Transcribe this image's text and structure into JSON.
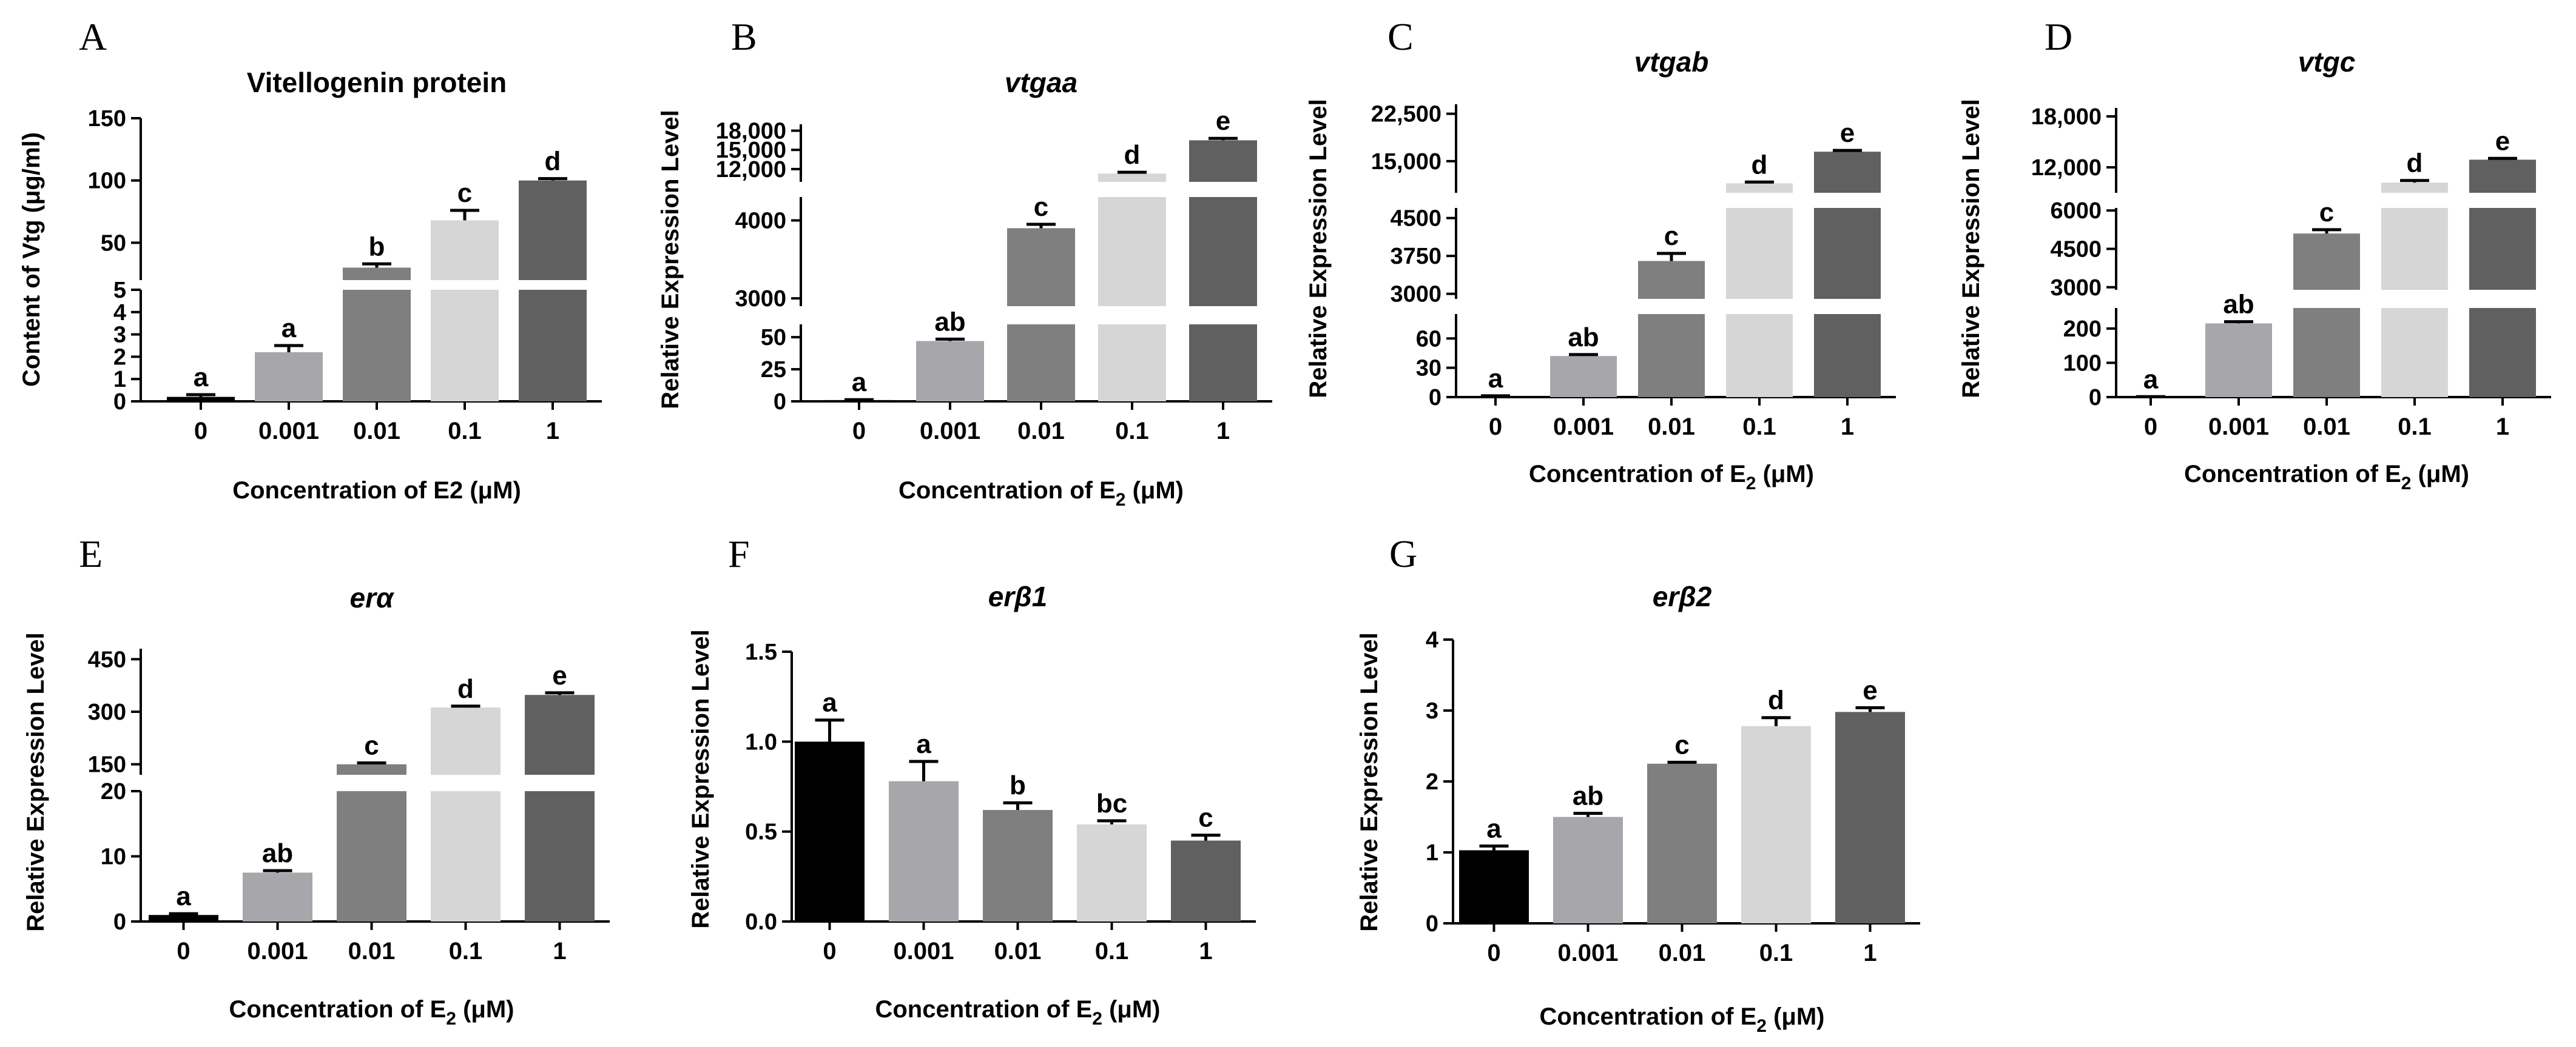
{
  "figure": {
    "colors": [
      "#000000",
      "#a6a6ab",
      "#7f7f7f",
      "#d6d6d6",
      "#606060"
    ],
    "xlabel_plain": "Concentration of E2 (μM)",
    "xlabel_prefix": "Concentration of E",
    "xlabel_sub": "2",
    "xlabel_suffix": " (μM)",
    "ylabel_expr": "Relative Expression Level",
    "categories": [
      "0",
      "0.001",
      "0.01",
      "0.1",
      "1"
    ]
  },
  "chart_data": [
    {
      "panel": "A",
      "type": "bar",
      "title": "Vitellogenin protein",
      "title_italic": false,
      "ylabel": "Content of Vtg (μg/ml)",
      "xlabel": "Concentration of E2 (μM)",
      "categories": [
        "0",
        "0.001",
        "0.01",
        "0.1",
        "1"
      ],
      "values": [
        0.2,
        2.2,
        30,
        68,
        100
      ],
      "errors": [
        0.1,
        0.3,
        3,
        8,
        1.5
      ],
      "letters": [
        "a",
        "a",
        "b",
        "c",
        "d"
      ],
      "segments": [
        {
          "range": [
            0,
            5
          ],
          "ticks": [
            "0",
            "1",
            "2",
            "3",
            "4",
            "5"
          ]
        },
        {
          "range": [
            20,
            150
          ],
          "ticks": [
            "50",
            "100",
            "150"
          ]
        }
      ]
    },
    {
      "panel": "B",
      "type": "bar",
      "title": "vtgaa",
      "title_italic": true,
      "ylabel": "Relative Expression Level",
      "xlabel": "Concentration of E2 (μM)",
      "categories": [
        "0",
        "0.001",
        "0.01",
        "0.1",
        "1"
      ],
      "values": [
        1,
        47,
        3900,
        11300,
        16500
      ],
      "errors": [
        0.3,
        1.5,
        50,
        200,
        300
      ],
      "letters": [
        "a",
        "ab",
        "c",
        "d",
        "e"
      ],
      "segments": [
        {
          "range": [
            0,
            60
          ],
          "ticks": [
            "0",
            "25",
            "50"
          ]
        },
        {
          "range": [
            2900,
            4300
          ],
          "ticks": [
            "3000",
            "4000"
          ]
        },
        {
          "range": [
            10000,
            19000
          ],
          "ticks": [
            "12,000",
            "15,000",
            "18,000"
          ]
        }
      ]
    },
    {
      "panel": "C",
      "type": "bar",
      "title": "vtgab",
      "title_italic": true,
      "ylabel": "Relative Expression Level",
      "xlabel": "Concentration of E2 (μM)",
      "categories": [
        "0",
        "0.001",
        "0.01",
        "0.1",
        "1"
      ],
      "values": [
        1,
        42,
        3650,
        11500,
        16500
      ],
      "errors": [
        0.3,
        1.5,
        150,
        200,
        200
      ],
      "letters": [
        "a",
        "ab",
        "c",
        "d",
        "e"
      ],
      "segments": [
        {
          "range": [
            0,
            85
          ],
          "ticks": [
            "0",
            "30",
            "60"
          ]
        },
        {
          "range": [
            2900,
            4700
          ],
          "ticks": [
            "3000",
            "3750",
            "4500"
          ]
        },
        {
          "range": [
            10000,
            24000
          ],
          "ticks": [
            "15,000",
            "22,500"
          ]
        }
      ]
    },
    {
      "panel": "D",
      "type": "bar",
      "title": "vtgc",
      "title_italic": true,
      "ylabel": "Relative Expression Level",
      "xlabel": "Concentration of E2 (μM)",
      "categories": [
        "0",
        "0.001",
        "0.01",
        "0.1",
        "1"
      ],
      "values": [
        1,
        215,
        5100,
        10200,
        12900
      ],
      "errors": [
        0.3,
        5,
        150,
        250,
        150
      ],
      "letters": [
        "a",
        "ab",
        "c",
        "d",
        "e"
      ],
      "segments": [
        {
          "range": [
            0,
            260
          ],
          "ticks": [
            "0",
            "100",
            "200"
          ]
        },
        {
          "range": [
            2900,
            6100
          ],
          "ticks": [
            "3000",
            "4500",
            "6000"
          ]
        },
        {
          "range": [
            9000,
            19000
          ],
          "ticks": [
            "12,000",
            "18,000"
          ]
        }
      ]
    },
    {
      "panel": "E",
      "type": "bar",
      "title": "erα",
      "title_italic": true,
      "ylabel": "Relative Expression Level",
      "xlabel": "Concentration of E2 (μM)",
      "categories": [
        "0",
        "0.001",
        "0.01",
        "0.1",
        "1"
      ],
      "values": [
        1,
        7.5,
        150,
        312,
        348
      ],
      "errors": [
        0.2,
        0.3,
        4,
        4,
        6
      ],
      "letters": [
        "a",
        "ab",
        "c",
        "d",
        "e"
      ],
      "segments": [
        {
          "range": [
            0,
            20
          ],
          "ticks": [
            "0",
            "10",
            "20"
          ]
        },
        {
          "range": [
            120,
            480
          ],
          "ticks": [
            "150",
            "300",
            "450"
          ]
        }
      ]
    },
    {
      "panel": "F",
      "type": "bar",
      "title": "erβ1",
      "title_italic": true,
      "ylabel": "Relative Expression Level",
      "xlabel": "Concentration of E2 (μM)",
      "categories": [
        "0",
        "0.001",
        "0.01",
        "0.1",
        "1"
      ],
      "values": [
        1.0,
        0.78,
        0.62,
        0.54,
        0.45
      ],
      "errors": [
        0.12,
        0.11,
        0.04,
        0.02,
        0.03
      ],
      "letters": [
        "a",
        "a",
        "b",
        "bc",
        "c"
      ],
      "segments": [
        {
          "range": [
            0,
            1.5
          ],
          "ticks": [
            "0.0",
            "0.5",
            "1.0",
            "1.5"
          ]
        }
      ]
    },
    {
      "panel": "G",
      "type": "bar",
      "title": "erβ2",
      "title_italic": true,
      "ylabel": "Relative Expression Level",
      "xlabel": "Concentration of E2 (μM)",
      "categories": [
        "0",
        "0.001",
        "0.01",
        "0.1",
        "1"
      ],
      "values": [
        1.03,
        1.5,
        2.25,
        2.78,
        2.98
      ],
      "errors": [
        0.06,
        0.05,
        0.02,
        0.12,
        0.06
      ],
      "letters": [
        "a",
        "ab",
        "c",
        "d",
        "e"
      ],
      "segments": [
        {
          "range": [
            0,
            4
          ],
          "ticks": [
            "0",
            "1",
            "2",
            "3",
            "4"
          ]
        }
      ]
    }
  ]
}
